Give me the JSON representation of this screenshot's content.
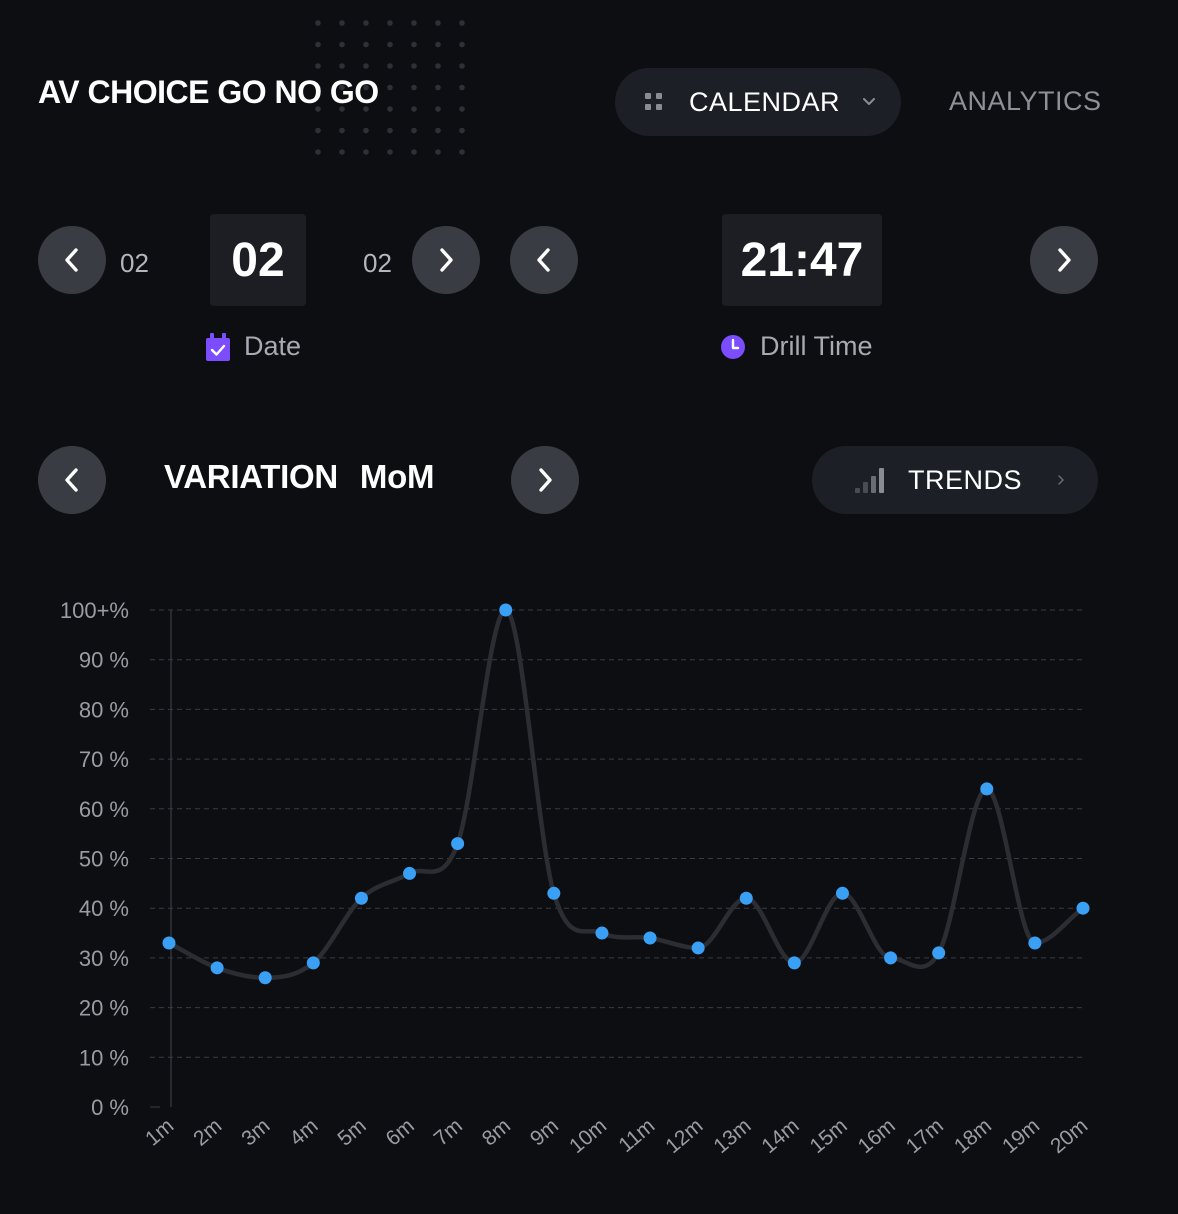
{
  "header": {
    "title": "AV CHOICE GO NO GO",
    "calendar_label": "CALENDAR",
    "analytics_label": "ANALYTICS"
  },
  "date_picker": {
    "prev_value": "02",
    "current_value": "02",
    "next_value": "02",
    "label": "Date"
  },
  "time_picker": {
    "current_value": "21:47",
    "label": "Drill Time"
  },
  "variation": {
    "title_left": "VARIATION",
    "title_right": "MoM",
    "trends_label": "TRENDS"
  },
  "colors": {
    "background": "#0d0e12",
    "accent_point": "#3aa0f5",
    "accent_icon": "#7b4dff",
    "line": "#2c2d33"
  },
  "icons": {
    "prev": "chevron-left-icon",
    "next": "chevron-right-icon",
    "calendar_grid": "grid-icon",
    "dropdown": "chevron-down-icon",
    "date": "calendar-check-icon",
    "time": "clock-icon",
    "trends": "signal-bars-icon"
  },
  "chart_data": {
    "type": "line",
    "categories": [
      "1m",
      "2m",
      "3m",
      "4m",
      "5m",
      "6m",
      "7m",
      "8m",
      "9m",
      "10m",
      "11m",
      "12m",
      "13m",
      "14m",
      "15m",
      "16m",
      "17m",
      "18m",
      "19m",
      "20m"
    ],
    "series": [
      {
        "values": [
          33,
          28,
          26,
          29,
          42,
          47,
          53,
          100,
          43,
          35,
          34,
          32,
          42,
          29,
          43,
          30,
          31,
          64,
          33,
          40
        ]
      }
    ],
    "y_ticks": [
      "0 %",
      "10 %",
      "20 %",
      "30 %",
      "40 %",
      "50 %",
      "60 %",
      "70 %",
      "80 %",
      "90 %",
      "100+%"
    ],
    "ylim": [
      0,
      100
    ],
    "grid": true
  }
}
